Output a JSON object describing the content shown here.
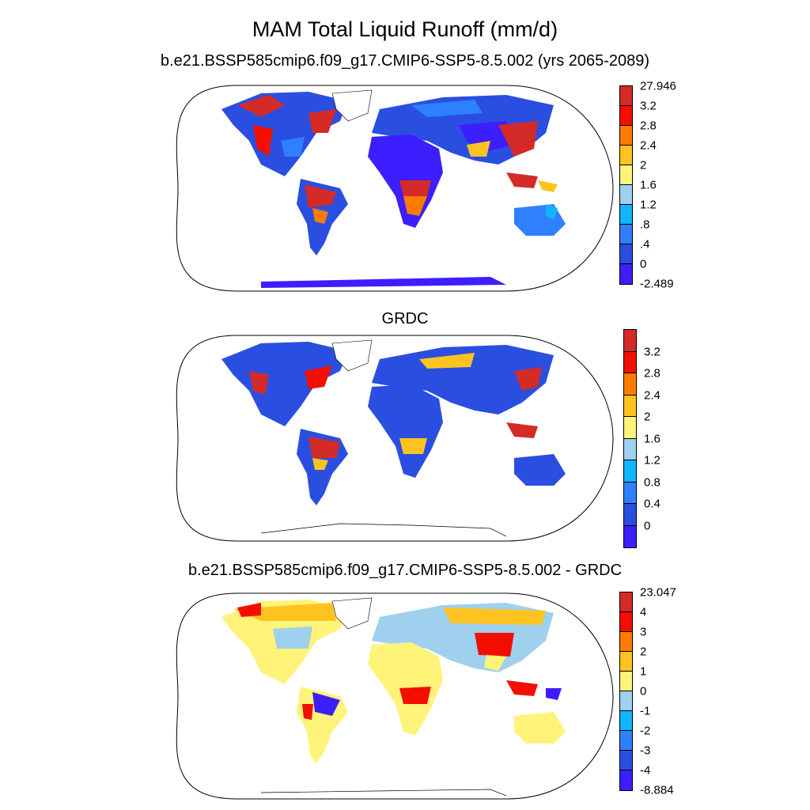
{
  "main_title": "MAM Total Liquid Runoff (mm/d)",
  "panels": [
    {
      "title": "b.e21.BSSP585cmip6.f09_g17.CMIP6-SSP5-8.5.002 (yrs 2065-2089)",
      "colorbar": {
        "colors": [
          "#3d1eff",
          "#2a4fe0",
          "#2f80ff",
          "#12b4ff",
          "#9fd0ee",
          "#fff37a",
          "#ffc321",
          "#ff7b00",
          "#f20f00",
          "#d42a28"
        ],
        "labels": [
          "-2.489",
          "0",
          ".4",
          ".8",
          "1.2",
          "1.6",
          "2",
          "2.4",
          "2.8",
          "3.2",
          "27.946"
        ]
      }
    },
    {
      "title": "GRDC",
      "colorbar": {
        "colors": [
          "#3d1eff",
          "#2a4fe0",
          "#2f80ff",
          "#12b4ff",
          "#9fd0ee",
          "#fff37a",
          "#ffc321",
          "#ff7b00",
          "#f20f00",
          "#d42a28"
        ],
        "labels": [
          "",
          "0",
          "0.4",
          "0.8",
          "1.2",
          "1.6",
          "2",
          "2.4",
          "2.8",
          "3.2",
          ""
        ]
      }
    },
    {
      "title": "b.e21.BSSP585cmip6.f09_g17.CMIP6-SSP5-8.5.002 - GRDC",
      "colorbar": {
        "colors": [
          "#3d1eff",
          "#2a4fe0",
          "#2f80ff",
          "#12b4ff",
          "#9fd0ee",
          "#fff37a",
          "#ffc321",
          "#ff7b00",
          "#f20f00",
          "#d42a28"
        ],
        "labels": [
          "-8.884",
          "-4",
          "-3",
          "-2",
          "-1",
          "0",
          "1",
          "2",
          "3",
          "4",
          "23.047"
        ]
      }
    }
  ]
}
